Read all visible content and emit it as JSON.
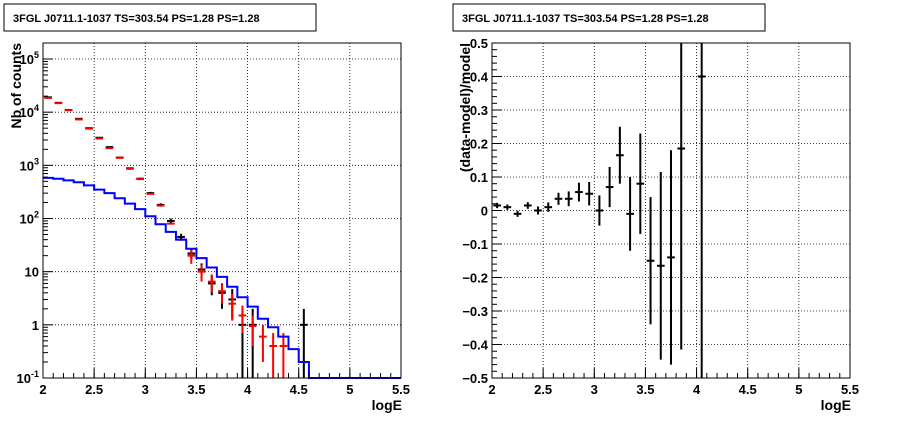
{
  "chart_data": [
    {
      "type": "line",
      "title": "3FGL J0711.1-1037 TS=303.54 PS=1.28 PS=1.28",
      "xlabel": "logE",
      "ylabel": "Nb of counts",
      "xlim": [
        2,
        5.5
      ],
      "ylim": [
        0.1,
        200000
      ],
      "yscale": "log",
      "grid": true,
      "x_ticks": [
        "2",
        "2.5",
        "3",
        "3.5",
        "4",
        "4.5",
        "5",
        "5.5"
      ],
      "y_ticks": [
        "10^{-1}",
        "1",
        "10",
        "10^{2}",
        "10^{3}",
        "10^{4}",
        "10^{5}"
      ],
      "series": [
        {
          "kind": "data-points",
          "color": "#000000",
          "x": [
            2.05,
            2.15,
            2.25,
            2.35,
            2.45,
            2.55,
            2.65,
            2.75,
            2.85,
            2.95,
            3.05,
            3.15,
            3.25,
            3.35,
            3.45,
            3.55,
            3.65,
            3.75,
            3.85,
            3.95,
            4.05,
            4.55
          ],
          "y": [
            19000,
            15000,
            11000,
            7500,
            5000,
            3300,
            2200,
            1400,
            880,
            560,
            300,
            180,
            90,
            45,
            22,
            11,
            6,
            4,
            3,
            1,
            1,
            1
          ],
          "yerr": [
            140,
            120,
            100,
            85,
            70,
            57,
            47,
            37,
            30,
            24,
            17,
            13,
            9.5,
            6.7,
            4.7,
            3.3,
            2.4,
            2,
            1.7,
            1,
            1,
            1
          ]
        },
        {
          "kind": "model-total",
          "color": "#ff0000",
          "x": [
            2.05,
            2.15,
            2.25,
            2.35,
            2.45,
            2.55,
            2.65,
            2.75,
            2.85,
            2.95,
            3.05,
            3.15,
            3.25,
            3.35,
            3.45,
            3.55,
            3.65,
            3.75,
            3.85,
            3.95,
            4.05,
            4.15,
            4.25,
            4.35
          ],
          "y": [
            18500,
            14800,
            10900,
            7300,
            4900,
            3200,
            2100,
            1380,
            860,
            550,
            290,
            175,
            80,
            40,
            20,
            10,
            6.5,
            4.3,
            2.5,
            1.5,
            0.95,
            0.6,
            0.4,
            0.4
          ],
          "yerr": [
            0,
            0,
            0,
            0,
            0,
            0,
            0,
            0,
            0,
            0,
            0,
            0,
            0,
            0,
            6,
            3.5,
            2.4,
            1.8,
            1.3,
            0.8,
            0.55,
            0.4,
            0.3,
            0.3
          ]
        },
        {
          "kind": "source-model",
          "color": "#0000ff",
          "x": [
            2.0,
            2.1,
            2.2,
            2.3,
            2.4,
            2.5,
            2.6,
            2.7,
            2.8,
            2.9,
            3.0,
            3.1,
            3.2,
            3.3,
            3.4,
            3.5,
            3.6,
            3.7,
            3.8,
            3.9,
            4.0,
            4.1,
            4.2,
            4.3,
            4.4,
            4.5,
            4.6,
            4.7,
            4.8,
            4.9,
            5.0,
            5.5
          ],
          "y": [
            580,
            560,
            520,
            480,
            420,
            350,
            300,
            240,
            190,
            150,
            110,
            78,
            56,
            40,
            27,
            18,
            12,
            8,
            5.2,
            3.3,
            2.2,
            1.3,
            0.9,
            0.6,
            0.35,
            0.2,
            0.1,
            0.1,
            0.1,
            0.1,
            0.1,
            0.1
          ]
        }
      ]
    },
    {
      "type": "scatter",
      "title": "3FGL J0711.1-1037 TS=303.54 PS=1.28 PS=1.28",
      "xlabel": "logE",
      "ylabel": "(data-model)/model",
      "xlim": [
        2,
        5.5
      ],
      "ylim": [
        -0.5,
        0.5
      ],
      "grid": true,
      "x_ticks": [
        "2",
        "2.5",
        "3",
        "3.5",
        "4",
        "4.5",
        "5",
        "5.5"
      ],
      "y_ticks": [
        "−0.5",
        "−0.4",
        "−0.3",
        "−0.2",
        "−0.1",
        "0",
        "0.1",
        "0.2",
        "0.3",
        "0.4",
        "0.5"
      ],
      "series": [
        {
          "color": "#000000",
          "x": [
            2.05,
            2.15,
            2.25,
            2.35,
            2.45,
            2.55,
            2.65,
            2.75,
            2.85,
            2.95,
            3.05,
            3.15,
            3.25,
            3.35,
            3.45,
            3.55,
            3.65,
            3.75,
            3.85,
            4.05
          ],
          "y": [
            0.015,
            0.01,
            -0.01,
            0.015,
            0.0,
            0.01,
            0.035,
            0.035,
            0.055,
            0.05,
            0.0,
            0.07,
            0.165,
            -0.01,
            0.08,
            -0.15,
            -0.165,
            -0.14,
            0.185,
            0.4
          ],
          "yerr": [
            0.008,
            0.008,
            0.009,
            0.01,
            0.012,
            0.014,
            0.018,
            0.022,
            0.028,
            0.035,
            0.045,
            0.06,
            0.085,
            0.11,
            0.15,
            0.19,
            0.28,
            0.32,
            0.6,
            0.9
          ]
        }
      ]
    }
  ]
}
